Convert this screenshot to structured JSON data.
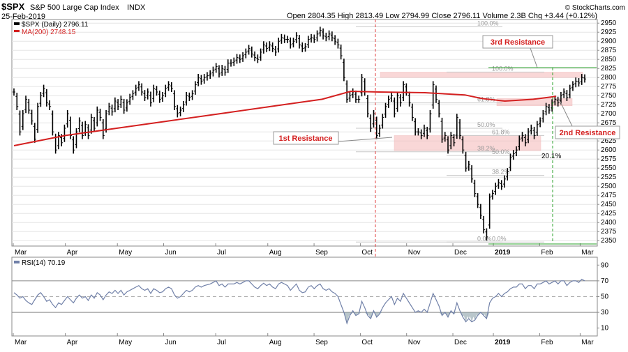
{
  "header": {
    "symbol": "$SPX",
    "name": "S&P 500 Large Cap Index",
    "exchange": "INDX",
    "date": "25-Feb-2019",
    "quote": "Open 2804.35   High 2813.49   Low 2794.99   Close 2796.11   Volume 2.3B   Chg +3.44 (+0.12%)",
    "credit": "© StockCharts.com"
  },
  "colors": {
    "price": "#000000",
    "ma": "#d42020",
    "rsi": "#7080a8",
    "band": "#f5b8b8",
    "green": "#2aa02a",
    "vline": "#e04040"
  },
  "chart_data": [
    {
      "type": "line",
      "title": "$SPX (Daily) 2796.11",
      "legend": [
        {
          "label": "$SPX (Daily) 2796.11",
          "color": "#000000"
        },
        {
          "label": "MA(200) 2748.15",
          "color": "#d42020"
        }
      ],
      "x_ticks": [
        "Mar",
        "Apr",
        "May",
        "Jun",
        "Jul",
        "Aug",
        "Sep",
        "Oct",
        "Nov",
        "Dec",
        "2019",
        "Feb",
        "Mar"
      ],
      "ylim": [
        2335,
        2960
      ],
      "y_ticks": [
        2350,
        2375,
        2400,
        2425,
        2450,
        2475,
        2500,
        2525,
        2550,
        2575,
        2600,
        2625,
        2650,
        2675,
        2700,
        2725,
        2750,
        2775,
        2800,
        2825,
        2850,
        2875,
        2900,
        2925,
        2950
      ],
      "series": [
        {
          "name": "$SPX (Daily)",
          "style": "ohlc-bars",
          "values": [
            2760,
            2720,
            2650,
            2700,
            2740,
            2710,
            2680,
            2630,
            2720,
            2750,
            2770,
            2730,
            2720,
            2650,
            2600,
            2640,
            2620,
            2660,
            2700,
            2640,
            2600,
            2650,
            2680,
            2640,
            2670,
            2640,
            2690,
            2660,
            2710,
            2690,
            2640,
            2700,
            2720,
            2705,
            2735,
            2720,
            2740,
            2710,
            2730,
            2745,
            2755,
            2770,
            2780,
            2760,
            2745,
            2760,
            2730,
            2770,
            2760,
            2740,
            2750,
            2770,
            2780,
            2770,
            2720,
            2700,
            2710,
            2725,
            2750,
            2745,
            2755,
            2780,
            2800,
            2790,
            2800,
            2805,
            2810,
            2820,
            2830,
            2810,
            2825,
            2815,
            2840,
            2840,
            2845,
            2855,
            2850,
            2860,
            2870,
            2880,
            2865,
            2855,
            2850,
            2870,
            2890,
            2880,
            2890,
            2880,
            2870,
            2900,
            2910,
            2905,
            2905,
            2890,
            2900,
            2915,
            2890,
            2880,
            2885,
            2905,
            2910,
            2905,
            2920,
            2930,
            2915,
            2910,
            2920,
            2910,
            2900,
            2890,
            2860,
            2800,
            2740,
            2750,
            2760,
            2740,
            2740,
            2800,
            2760,
            2700,
            2660,
            2700,
            2640,
            2660,
            2690,
            2720,
            2740,
            2750,
            2700,
            2750,
            2730,
            2780,
            2760,
            2730,
            2690,
            2650,
            2650,
            2640,
            2660,
            2640,
            2700,
            2780,
            2740,
            2700,
            2630,
            2640,
            2600,
            2640,
            2620,
            2690,
            2640,
            2600,
            2550,
            2560,
            2520,
            2480,
            2450,
            2420,
            2380,
            2360,
            2470,
            2480,
            2500,
            2510,
            2500,
            2520,
            2540,
            2580,
            2590,
            2600,
            2630,
            2640,
            2620,
            2650,
            2660,
            2640,
            2670,
            2680,
            2700,
            2720,
            2710,
            2730,
            2740,
            2730,
            2750,
            2760,
            2745,
            2770,
            2780,
            2790,
            2785,
            2800,
            2796
          ],
          "name_tag": "$SPX"
        },
        {
          "name": "MA(200)",
          "x_frac": [
            0.0,
            0.09,
            0.18,
            0.27,
            0.36,
            0.45,
            0.54,
            0.59,
            0.64,
            0.72,
            0.79,
            0.82,
            0.86,
            0.91,
            0.95
          ],
          "values": [
            2612,
            2640,
            2660,
            2680,
            2700,
            2720,
            2740,
            2762,
            2760,
            2758,
            2752,
            2742,
            2735,
            2740,
            2748
          ]
        }
      ],
      "fibonacci_left": [
        {
          "level": "100.0%",
          "value": 2940
        },
        {
          "level": "61.8%",
          "value": 2730
        },
        {
          "level": "50.0%",
          "value": 2660
        },
        {
          "level": "38.2%",
          "value": 2595
        },
        {
          "level": "0.0%",
          "value": 2346
        }
      ],
      "fibonacci_right": [
        {
          "level": "100.0%",
          "value": 2815
        },
        {
          "level": "61.8%",
          "value": 2640
        },
        {
          "level": "50.0%",
          "value": 2585
        },
        {
          "level": "38.2%",
          "value": 2530
        },
        {
          "level": "0.0%",
          "value": 2346
        }
      ],
      "annotations": {
        "resistance_1": "1st Resistance",
        "resistance_2": "2nd Resistance",
        "resistance_3": "3rd Resistance",
        "advance": "20.1%"
      },
      "resistance_zones": [
        {
          "name": "1st",
          "low": 2598,
          "high": 2640
        },
        {
          "name": "2nd",
          "low": 2722,
          "high": 2742
        },
        {
          "name": "3rd",
          "low": 2800,
          "high": 2815
        }
      ]
    },
    {
      "type": "line",
      "title": "RSI(14) 70.19",
      "legend": [
        {
          "label": "RSI(14) 70.19",
          "color": "#7080a8"
        }
      ],
      "ylim": [
        0,
        100
      ],
      "y_ticks": [
        10,
        30,
        50,
        70,
        90
      ],
      "reference_lines": [
        30,
        50,
        70
      ],
      "x_ticks": [
        "Mar",
        "Apr",
        "May",
        "Jun",
        "Jul",
        "Aug",
        "Sep",
        "Oct",
        "Nov",
        "Dec",
        "2019",
        "Feb",
        "Mar"
      ],
      "series": [
        {
          "name": "RSI(14)",
          "values": [
            55,
            52,
            48,
            50,
            45,
            42,
            40,
            46,
            52,
            55,
            50,
            44,
            46,
            40,
            36,
            42,
            40,
            45,
            50,
            46,
            42,
            48,
            52,
            48,
            50,
            45,
            52,
            48,
            55,
            52,
            46,
            52,
            56,
            54,
            58,
            54,
            58,
            52,
            56,
            58,
            60,
            62,
            64,
            60,
            58,
            60,
            54,
            60,
            58,
            55,
            56,
            60,
            62,
            60,
            52,
            48,
            50,
            54,
            58,
            56,
            58,
            62,
            64,
            62,
            64,
            65,
            66,
            68,
            70,
            64,
            66,
            62,
            66,
            66,
            66,
            68,
            66,
            68,
            70,
            70,
            66,
            62,
            60,
            64,
            67,
            64,
            66,
            62,
            60,
            66,
            68,
            66,
            64,
            58,
            62,
            66,
            58,
            55,
            56,
            62,
            64,
            60,
            64,
            66,
            60,
            58,
            60,
            56,
            54,
            50,
            40,
            30,
            16,
            26,
            32,
            26,
            28,
            44,
            36,
            26,
            22,
            32,
            24,
            28,
            36,
            42,
            46,
            50,
            40,
            48,
            44,
            54,
            48,
            42,
            36,
            30,
            32,
            30,
            34,
            30,
            42,
            54,
            46,
            38,
            26,
            30,
            24,
            32,
            28,
            42,
            32,
            24,
            18,
            22,
            18,
            20,
            26,
            30,
            26,
            22,
            42,
            48,
            50,
            54,
            50,
            54,
            56,
            60,
            62,
            62,
            66,
            66,
            60,
            64,
            64,
            60,
            66,
            66,
            68,
            70,
            66,
            68,
            70,
            66,
            70,
            70,
            64,
            68,
            70,
            70,
            68,
            72,
            70
          ]
        }
      ]
    }
  ]
}
